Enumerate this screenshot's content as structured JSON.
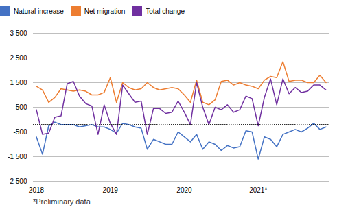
{
  "chart_data": {
    "type": "line",
    "footnote": "*Preliminary data",
    "categories": [
      "2018",
      null,
      null,
      null,
      null,
      null,
      null,
      null,
      null,
      null,
      null,
      null,
      "2019",
      null,
      null,
      null,
      null,
      null,
      null,
      null,
      null,
      null,
      null,
      null,
      "2020",
      null,
      null,
      null,
      null,
      null,
      null,
      null,
      null,
      null,
      null,
      null,
      "2021*",
      null,
      null,
      null,
      null,
      null,
      null,
      null,
      null,
      null,
      null,
      null
    ],
    "series": [
      {
        "name": "Natural increase",
        "color": "#4472c4",
        "values": [
          -700,
          -1400,
          -250,
          -100,
          -200,
          -200,
          -200,
          -300,
          -250,
          -200,
          -300,
          -300,
          -400,
          -550,
          -150,
          -200,
          -300,
          -350,
          -1200,
          -800,
          -900,
          -1000,
          -1000,
          -500,
          -700,
          -900,
          -600,
          -1200,
          -900,
          -1000,
          -1250,
          -1050,
          -1150,
          -1100,
          -450,
          -500,
          -1600,
          -700,
          -800,
          -1100,
          -600,
          -500,
          -400,
          -500,
          -350,
          -150,
          -400,
          -300
        ]
      },
      {
        "name": "Net migration",
        "color": "#ed7d31",
        "values": [
          1350,
          1200,
          700,
          900,
          1250,
          1200,
          1150,
          1200,
          1150,
          1000,
          1000,
          1100,
          1700,
          700,
          1500,
          1300,
          1200,
          1250,
          1500,
          1300,
          1200,
          1250,
          1300,
          1250,
          1000,
          700,
          1600,
          700,
          600,
          800,
          1550,
          1600,
          1400,
          1500,
          1400,
          1350,
          1250,
          1600,
          1750,
          1700,
          2350,
          1550,
          1600,
          1600,
          1500,
          1500,
          1800,
          1500
        ]
      },
      {
        "name": "Total change",
        "color": "#7030a0",
        "values": [
          400,
          -600,
          -550,
          100,
          150,
          1450,
          1550,
          950,
          650,
          550,
          -600,
          600,
          -150,
          -600,
          1400,
          1050,
          700,
          750,
          -600,
          450,
          450,
          250,
          300,
          750,
          300,
          -200,
          1500,
          500,
          -200,
          500,
          400,
          600,
          300,
          400,
          950,
          850,
          -250,
          900,
          1650,
          600,
          1650,
          1050,
          1300,
          1100,
          1150,
          1400,
          1400,
          1200
        ]
      }
    ],
    "reference_line": {
      "y": -200,
      "color": "#000000",
      "line_style": "dotted"
    },
    "ylim": [
      -2500,
      3500
    ],
    "yticks": [
      {
        "value": -2500,
        "label": "-2 500"
      },
      {
        "value": -1500,
        "label": "-1 500"
      },
      -500,
      500,
      {
        "value": 1500,
        "label": "1 500"
      },
      {
        "value": 2500,
        "label": "2 500"
      },
      {
        "value": 3500,
        "label": "3 500"
      }
    ],
    "grid": true,
    "legend": "top left"
  }
}
